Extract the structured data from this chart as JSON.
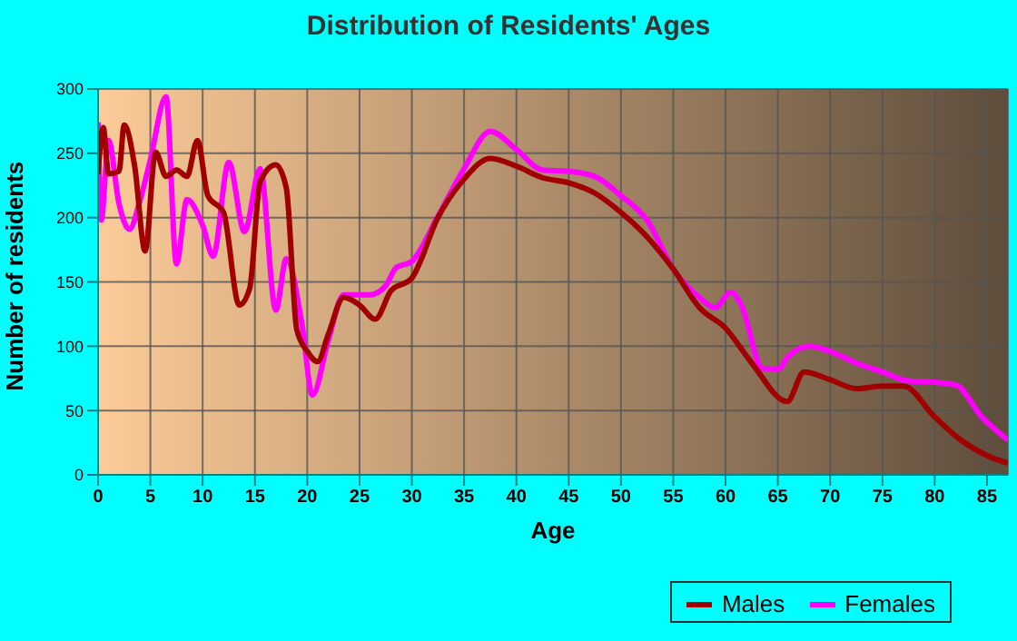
{
  "chart_data": {
    "type": "line",
    "title": "Distribution of Residents' Ages",
    "xlabel": "Age",
    "ylabel": "Number of residents",
    "xlim": [
      0,
      87
    ],
    "xticks": [
      0,
      5,
      10,
      15,
      20,
      25,
      30,
      35,
      40,
      45,
      50,
      55,
      60,
      65,
      70,
      75,
      80,
      85
    ],
    "ylim": [
      0,
      300
    ],
    "yticks": [
      0,
      50,
      100,
      150,
      200,
      250,
      300
    ],
    "grid": true,
    "legend": "bottom right",
    "marker": "none",
    "line_style": "solid",
    "series": [
      {
        "name": "Males",
        "color": "#a00000",
        "x": [
          0,
          0.5,
          1,
          2,
          2.5,
          3.5,
          4.5,
          5.5,
          6.5,
          7.5,
          8.5,
          9.5,
          10.5,
          12,
          13.5,
          14.5,
          15.5,
          17,
          18,
          19,
          20,
          21,
          22,
          23.5,
          25,
          26.5,
          28,
          30,
          32.5,
          35,
          37.5,
          40,
          42.5,
          45,
          47.5,
          50,
          52.5,
          55,
          57.5,
          60,
          62.5,
          65.9,
          67.5,
          70,
          72.5,
          75,
          77,
          80,
          82.5,
          85,
          87
        ],
        "values": [
          234,
          270,
          234,
          236,
          272,
          240,
          174,
          251,
          232,
          237,
          232,
          260,
          217,
          204,
          132,
          145,
          228,
          241,
          223,
          113,
          96,
          88,
          109,
          138,
          132,
          121,
          143,
          153,
          200,
          230,
          246,
          240,
          231,
          227,
          219,
          204,
          185,
          160,
          130,
          114,
          87,
          57,
          80,
          74,
          67,
          69,
          69,
          45,
          27,
          15,
          9
        ]
      },
      {
        "name": "Females",
        "color": "#ff00ff",
        "x": [
          0,
          0.3,
          1,
          2,
          3,
          4,
          5,
          6.5,
          7.5,
          8.5,
          10,
          11,
          12.5,
          14,
          15.5,
          17,
          18,
          19.5,
          20.5,
          22,
          23.5,
          26,
          27.5,
          28.5,
          30,
          32.5,
          35,
          37.5,
          40,
          42.5,
          45,
          47.5,
          50,
          52.5,
          55,
          57.5,
          59,
          60.5,
          61.5,
          63.5,
          65,
          66,
          68,
          70,
          72.5,
          75,
          77.5,
          80,
          82,
          84.5,
          87
        ],
        "values": [
          274,
          198,
          260,
          211,
          191,
          213,
          245,
          294,
          164,
          214,
          194,
          170,
          243,
          189,
          238,
          128,
          168,
          117,
          62,
          104,
          140,
          140,
          147,
          161,
          166,
          201,
          238,
          267,
          253,
          237,
          236,
          232,
          217,
          198,
          160,
          138,
          130,
          142,
          132,
          83,
          82,
          92,
          100,
          96,
          87,
          80,
          73,
          72,
          70,
          45,
          27
        ]
      }
    ]
  }
}
